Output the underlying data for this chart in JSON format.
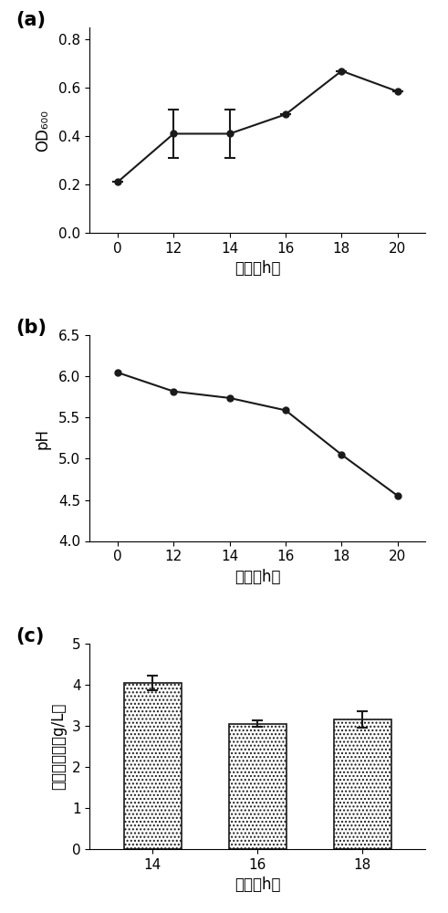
{
  "panel_a": {
    "x": [
      0,
      12,
      14,
      16,
      18,
      20
    ],
    "y": [
      0.21,
      0.41,
      0.41,
      0.49,
      0.67,
      0.585
    ],
    "yerr": [
      0,
      0.1,
      0.1,
      0,
      0,
      0
    ],
    "ylim": [
      0.0,
      0.85
    ],
    "yticks": [
      0.0,
      0.2,
      0.4,
      0.6,
      0.8
    ],
    "xlabel": "时间（h）",
    "ylabel": "OD₆₀₀",
    "label": "(a)"
  },
  "panel_b": {
    "x": [
      0,
      12,
      14,
      16,
      18,
      20
    ],
    "y": [
      6.05,
      5.82,
      5.74,
      5.59,
      5.05,
      4.55
    ],
    "ylim": [
      4.0,
      6.5
    ],
    "yticks": [
      4.0,
      4.5,
      5.0,
      5.5,
      6.0,
      6.5
    ],
    "xlabel": "时间（h）",
    "ylabel": "pH",
    "label": "(b)"
  },
  "panel_c": {
    "x": [
      0,
      1,
      2
    ],
    "x_labels": [
      "14",
      "16",
      "18"
    ],
    "y": [
      4.05,
      3.05,
      3.15
    ],
    "yerr": [
      0.18,
      0.08,
      0.2
    ],
    "ylim": [
      0,
      5
    ],
    "yticks": [
      0,
      1,
      2,
      3,
      4,
      5
    ],
    "xlabel": "时间（h）",
    "ylabel": "葡萄糖含量（g/L）",
    "label": "(c)"
  },
  "line_color": "#1a1a1a",
  "marker": "o",
  "marker_size": 5,
  "marker_face": "#1a1a1a",
  "line_width": 1.5,
  "bar_hatch": "....",
  "bar_width": 0.55,
  "font_size": 12,
  "label_font_size": 15,
  "tick_font_size": 11,
  "xticks_ab": [
    0,
    12,
    14,
    16,
    18,
    20
  ]
}
